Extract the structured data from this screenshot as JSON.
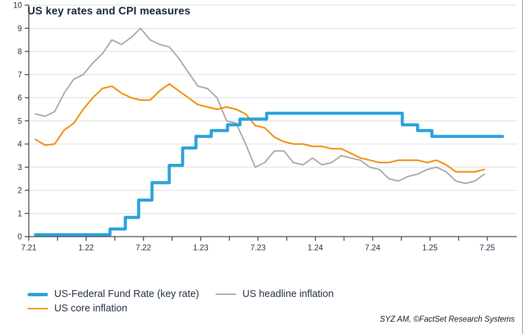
{
  "title": "US key rates and CPI measures",
  "source_note": "SYZ AM, ©FactSet Research Systems",
  "colors": {
    "key_rate_blue": "#2aa2db",
    "headline_gray": "#a5a5a5",
    "core_orange": "#f08c00",
    "grid": "#dcdcdc",
    "axis": "#3a3a3a",
    "text_dark_navy": "#15233c"
  },
  "chart_data": {
    "type": "line",
    "title": "US key rates and CPI measures",
    "xlabel": "",
    "ylabel": "",
    "ylim": [
      0,
      10
    ],
    "y_ticks": [
      0,
      1,
      2,
      3,
      4,
      5,
      6,
      7,
      8,
      9,
      10
    ],
    "grid": "horizontal",
    "legend_position": "bottom",
    "x_axis_note": "months since Jul 2021; labels are month.year",
    "x_major_ticks": [
      {
        "month": 0,
        "label": "7.21"
      },
      {
        "month": 6,
        "label": "1.22"
      },
      {
        "month": 12,
        "label": "7.22"
      },
      {
        "month": 18,
        "label": "1.23"
      },
      {
        "month": 24,
        "label": "7.23"
      },
      {
        "month": 30,
        "label": "1.24"
      },
      {
        "month": 36,
        "label": "7.24"
      },
      {
        "month": 42,
        "label": "1.25"
      },
      {
        "month": 48,
        "label": "7.25"
      }
    ],
    "x_minor_tick_months": [
      3,
      9,
      15,
      21,
      27,
      33,
      39,
      45
    ],
    "series": [
      {
        "name": "US-Federal Fund Rate (key rate)",
        "type": "step",
        "color": "#2aa2db",
        "stroke_width": 4.5,
        "points": [
          [
            0.7,
            0.08
          ],
          [
            8.5,
            0.33
          ],
          [
            10.1,
            0.83
          ],
          [
            11.5,
            1.58
          ],
          [
            12.9,
            2.33
          ],
          [
            14.7,
            3.08
          ],
          [
            16.1,
            3.83
          ],
          [
            17.5,
            4.33
          ],
          [
            19.1,
            4.58
          ],
          [
            20.8,
            4.83
          ],
          [
            22.1,
            5.08
          ],
          [
            24.9,
            5.33
          ],
          [
            39.1,
            4.83
          ],
          [
            40.7,
            4.58
          ],
          [
            42.2,
            4.33
          ],
          [
            49.6,
            4.33
          ]
        ]
      },
      {
        "name": "US headline inflation",
        "type": "line",
        "color": "#a5a5a5",
        "stroke_width": 2,
        "x_offset": 0.7,
        "values": [
          5.3,
          5.2,
          5.4,
          6.2,
          6.8,
          7.0,
          7.5,
          7.9,
          8.5,
          8.3,
          8.6,
          9.0,
          8.5,
          8.3,
          8.2,
          7.7,
          7.1,
          6.5,
          6.4,
          6.0,
          5.0,
          4.9,
          4.0,
          3.0,
          3.2,
          3.7,
          3.7,
          3.2,
          3.1,
          3.4,
          3.1,
          3.2,
          3.5,
          3.4,
          3.3,
          3.0,
          2.9,
          2.5,
          2.4,
          2.6,
          2.7,
          2.9,
          3.0,
          2.8,
          2.4,
          2.3,
          2.4,
          2.7
        ]
      },
      {
        "name": "US core inflation",
        "type": "line",
        "color": "#f08c00",
        "stroke_width": 2.2,
        "x_offset": 0.7,
        "values": [
          4.2,
          3.95,
          4.0,
          4.6,
          4.9,
          5.5,
          6.0,
          6.4,
          6.5,
          6.2,
          6.0,
          5.9,
          5.9,
          6.3,
          6.6,
          6.3,
          6.0,
          5.7,
          5.6,
          5.5,
          5.6,
          5.5,
          5.3,
          4.8,
          4.7,
          4.3,
          4.1,
          4.0,
          4.0,
          3.9,
          3.9,
          3.8,
          3.8,
          3.6,
          3.4,
          3.3,
          3.2,
          3.2,
          3.3,
          3.3,
          3.3,
          3.2,
          3.3,
          3.1,
          2.8,
          2.8,
          2.8,
          2.9
        ]
      }
    ]
  },
  "legend": {
    "rows": [
      [
        {
          "series_index": 0,
          "label": "US-Federal Fund Rate (key rate)"
        },
        {
          "series_index": 1,
          "label": "US headline inflation"
        }
      ],
      [
        {
          "series_index": 2,
          "label": "US core inflation"
        }
      ]
    ]
  }
}
